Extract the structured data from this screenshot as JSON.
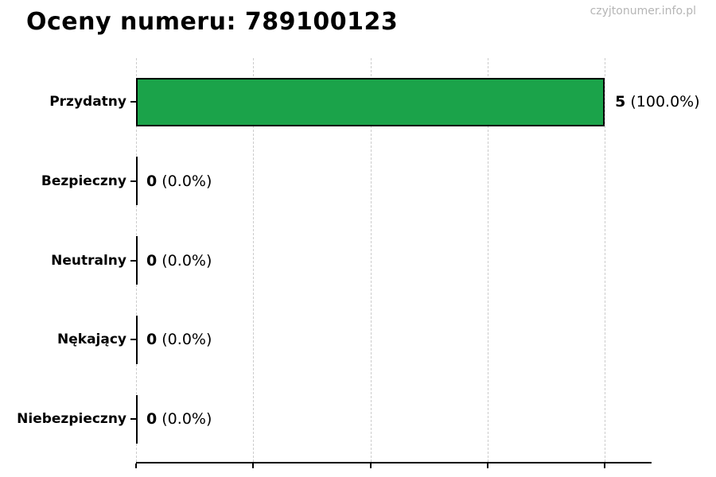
{
  "header": {
    "title": "Oceny numeru: 789100123",
    "watermark": "czyjtonumer.info.pl"
  },
  "chart_data": {
    "type": "bar",
    "orientation": "horizontal",
    "title": "Oceny numeru: 789100123",
    "categories": [
      "Przydatny",
      "Bezpieczny",
      "Neutralny",
      "Nękający",
      "Niebezpieczny"
    ],
    "values": [
      5,
      0,
      0,
      0,
      0
    ],
    "value_labels": [
      {
        "count": "5",
        "percent": "(100.0%)"
      },
      {
        "count": "0",
        "percent": "(0.0%)"
      },
      {
        "count": "0",
        "percent": "(0.0%)"
      },
      {
        "count": "0",
        "percent": "(0.0%)"
      },
      {
        "count": "0",
        "percent": "(0.0%)"
      }
    ],
    "xlabel": "",
    "ylabel": "",
    "xlim": [
      0,
      5.5
    ],
    "xticks": [
      0,
      1.25,
      2.5,
      3.75,
      5
    ],
    "xtick_labels": [
      "",
      "",
      "",
      "",
      ""
    ],
    "grid": {
      "axis": "x",
      "style": "dashed",
      "color": "#cccccc"
    },
    "legend": null,
    "bar_color": "#1ba34a",
    "bar_edge_color": "#000000",
    "watermark": "czyjtonumer.info.pl"
  }
}
